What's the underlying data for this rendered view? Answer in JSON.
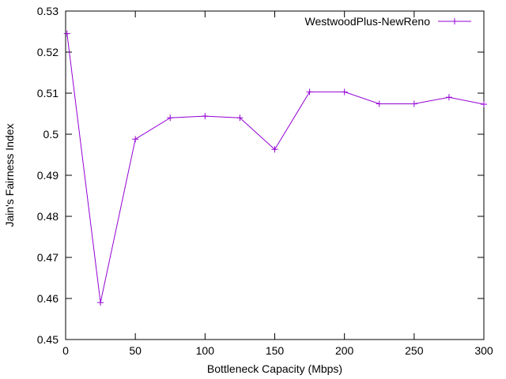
{
  "chart_data": {
    "type": "line",
    "xlabel": "Bottleneck Capacity (Mbps)",
    "ylabel": "Jain's Fairness Index",
    "xlim": [
      0,
      300
    ],
    "ylim": [
      0.45,
      0.53
    ],
    "x_ticks": [
      0,
      50,
      100,
      150,
      200,
      250,
      300
    ],
    "x_tick_labels": [
      "0",
      "50",
      "100",
      "150",
      "200",
      "250",
      "300"
    ],
    "y_ticks": [
      0.45,
      0.46,
      0.47,
      0.48,
      0.49,
      0.5,
      0.51,
      0.52,
      0.53
    ],
    "y_tick_labels": [
      "0.45",
      "0.46",
      "0.47",
      "0.48",
      "0.49",
      "0.5",
      "0.51",
      "0.52",
      "0.53"
    ],
    "grid": false,
    "legend": {
      "position": "top-right"
    },
    "series": [
      {
        "name": "WestwoodPlus-NewReno",
        "color": "#9400d3",
        "marker": "plus",
        "x": [
          1,
          25,
          50,
          75,
          100,
          125,
          150,
          175,
          200,
          225,
          250,
          275,
          300
        ],
        "y": [
          0.5245,
          0.459,
          0.4988,
          0.504,
          0.5044,
          0.504,
          0.4963,
          0.5103,
          0.5103,
          0.5074,
          0.5074,
          0.509,
          0.5073
        ]
      }
    ]
  }
}
